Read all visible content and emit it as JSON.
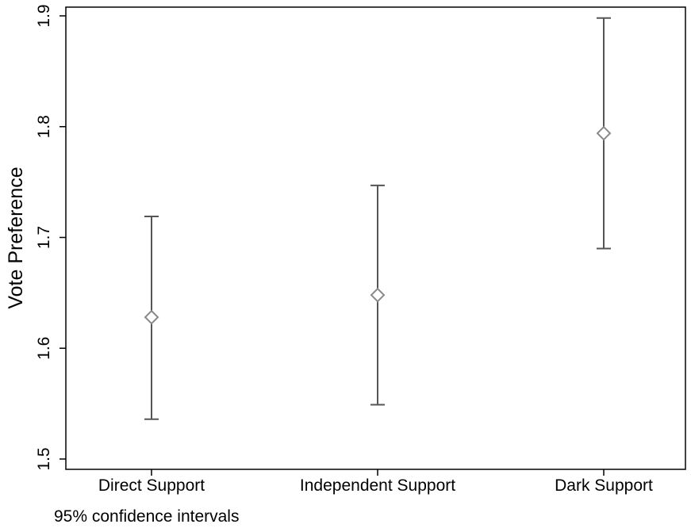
{
  "chart_data": {
    "type": "scatter",
    "ylabel": "Vote Preference",
    "xlabel": "",
    "ylim": [
      1.5,
      1.9
    ],
    "yticks": [
      "1.5",
      "1.6",
      "1.7",
      "1.8",
      "1.9"
    ],
    "grid": false,
    "categories": [
      "Direct Support",
      "Independent Support",
      "Dark Support"
    ],
    "points": [
      {
        "category": "Direct Support",
        "estimate": 1.628,
        "ci_low": 1.536,
        "ci_high": 1.719
      },
      {
        "category": "Independent Support",
        "estimate": 1.648,
        "ci_low": 1.549,
        "ci_high": 1.747
      },
      {
        "category": "Dark Support",
        "estimate": 1.794,
        "ci_low": 1.69,
        "ci_high": 1.898
      }
    ],
    "marker": "hollow-diamond",
    "colors": {
      "errorbar": "#555555",
      "marker": "#8a8a8a",
      "axis": "#000000"
    }
  },
  "footnote": "95% confidence intervals"
}
